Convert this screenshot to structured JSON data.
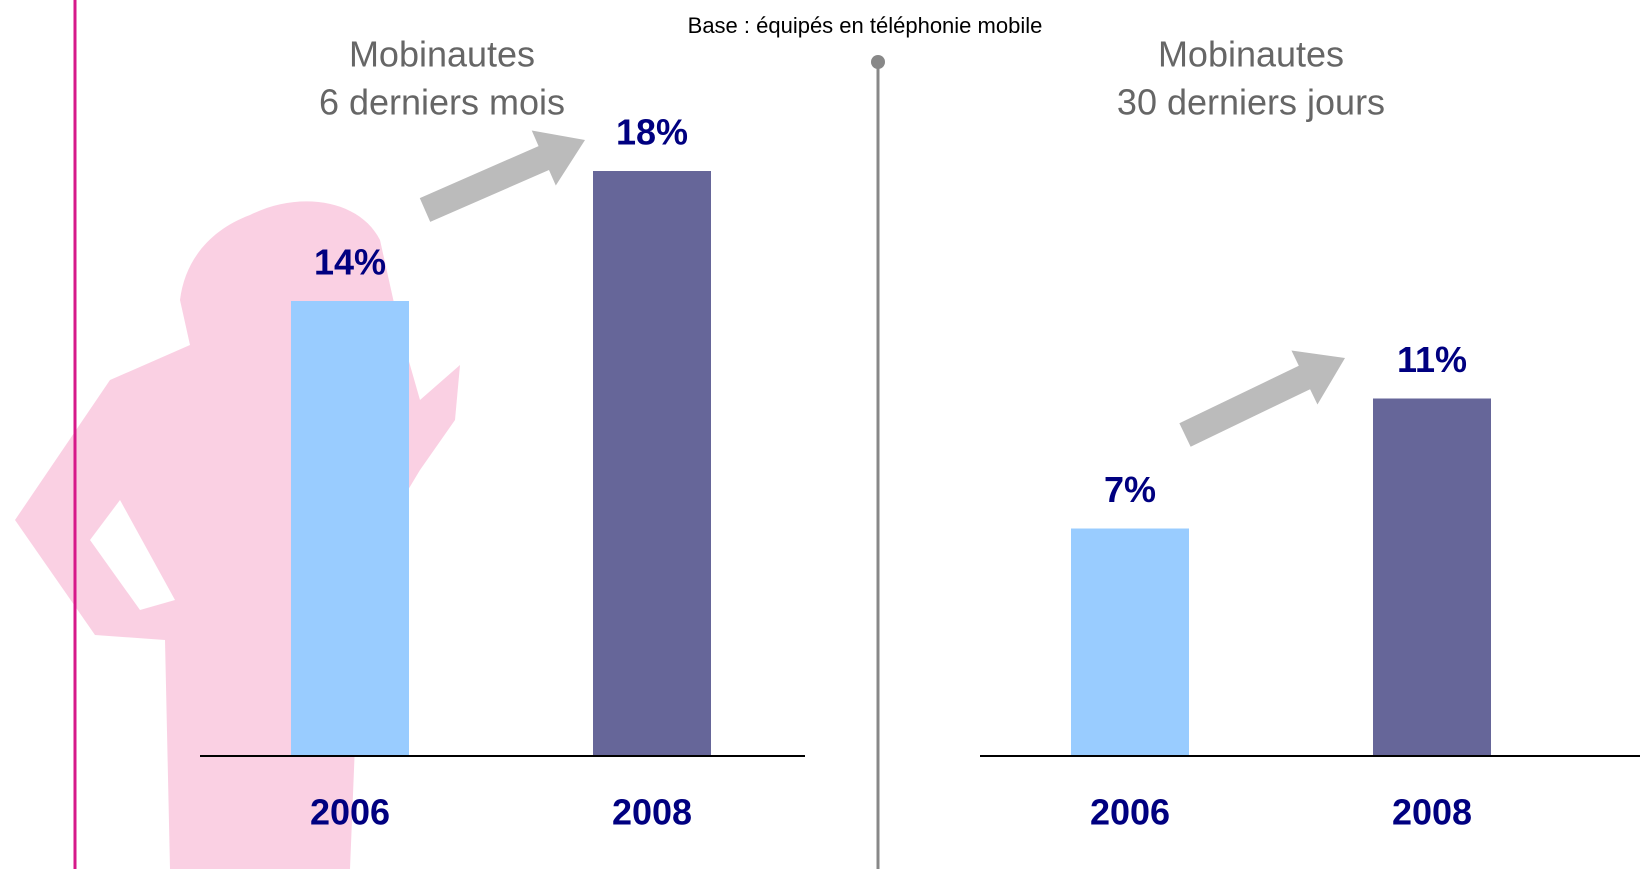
{
  "note": "Base : équipés en téléphonie mobile",
  "chart_data": [
    {
      "type": "bar",
      "title": [
        "Mobinautes",
        "6 derniers mois"
      ],
      "categories": [
        "2006",
        "2008"
      ],
      "values": [
        14,
        18
      ],
      "value_labels": [
        "14%",
        "18%"
      ],
      "colors": [
        "#99ccff",
        "#666699"
      ]
    },
    {
      "type": "bar",
      "title": [
        "Mobinautes",
        "30 derniers jours"
      ],
      "categories": [
        "2006",
        "2008"
      ],
      "values": [
        7,
        11
      ],
      "value_labels": [
        "7%",
        "11%"
      ],
      "colors": [
        "#99ccff",
        "#666699"
      ]
    }
  ]
}
